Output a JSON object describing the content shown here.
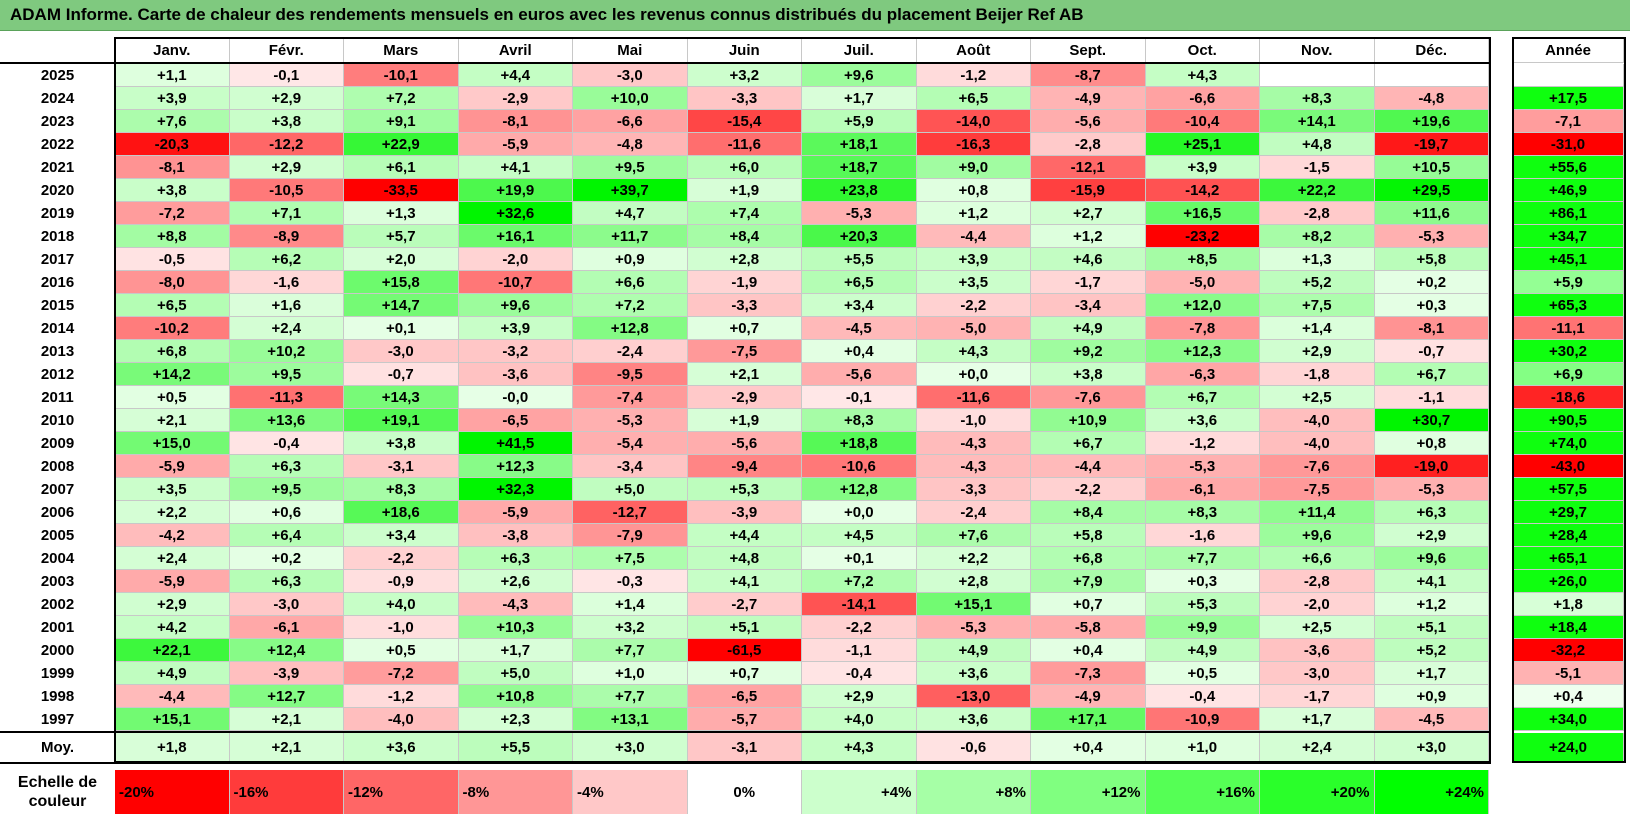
{
  "title": "ADAM Informe. Carte de chaleur des rendements mensuels en euros avec les revenus connus distribués du placement Beijer Ref AB",
  "chart_data": {
    "type": "heatmap",
    "title": "ADAM Informe. Carte de chaleur des rendements mensuels en euros avec les revenus connus distribués du placement Beijer Ref AB",
    "columns": [
      "Janv.",
      "Févr.",
      "Mars",
      "Avril",
      "Mai",
      "Juin",
      "Juil.",
      "Août",
      "Sept.",
      "Oct.",
      "Nov.",
      "Déc."
    ],
    "year_column_label": "Année",
    "average_row_label": "Moy.",
    "rows": [
      {
        "year": "2025",
        "months": [
          "+1,1",
          "-0,1",
          "-10,1",
          "+4,4",
          "-3,0",
          "+3,2",
          "+9,6",
          "-1,2",
          "-8,7",
          "+4,3",
          "",
          ""
        ],
        "annual": ""
      },
      {
        "year": "2024",
        "months": [
          "+3,9",
          "+2,9",
          "+7,2",
          "-2,9",
          "+10,0",
          "-3,3",
          "+1,7",
          "+6,5",
          "-4,9",
          "-6,6",
          "+8,3",
          "-4,8"
        ],
        "annual": "+17,5"
      },
      {
        "year": "2023",
        "months": [
          "+7,6",
          "+3,8",
          "+9,1",
          "-8,1",
          "-6,6",
          "-15,4",
          "+5,9",
          "-14,0",
          "-5,6",
          "-10,4",
          "+14,1",
          "+19,6"
        ],
        "annual": "-7,1"
      },
      {
        "year": "2022",
        "months": [
          "-20,3",
          "-12,2",
          "+22,9",
          "-5,9",
          "-4,8",
          "-11,6",
          "+18,1",
          "-16,3",
          "-2,8",
          "+25,1",
          "+4,8",
          "-19,7"
        ],
        "annual": "-31,0"
      },
      {
        "year": "2021",
        "months": [
          "-8,1",
          "+2,9",
          "+6,1",
          "+4,1",
          "+9,5",
          "+6,0",
          "+18,7",
          "+9,0",
          "-12,1",
          "+3,9",
          "-1,5",
          "+10,5"
        ],
        "annual": "+55,6"
      },
      {
        "year": "2020",
        "months": [
          "+3,8",
          "-10,5",
          "-33,5",
          "+19,9",
          "+39,7",
          "+1,9",
          "+23,8",
          "+0,8",
          "-15,9",
          "-14,2",
          "+22,2",
          "+29,5"
        ],
        "annual": "+46,9"
      },
      {
        "year": "2019",
        "months": [
          "-7,2",
          "+7,1",
          "+1,3",
          "+32,6",
          "+4,7",
          "+7,4",
          "-5,3",
          "+1,2",
          "+2,7",
          "+16,5",
          "-2,8",
          "+11,6"
        ],
        "annual": "+86,1"
      },
      {
        "year": "2018",
        "months": [
          "+8,8",
          "-8,9",
          "+5,7",
          "+16,1",
          "+11,7",
          "+8,4",
          "+20,3",
          "-4,4",
          "+1,2",
          "-23,2",
          "+8,2",
          "-5,3"
        ],
        "annual": "+34,7"
      },
      {
        "year": "2017",
        "months": [
          "-0,5",
          "+6,2",
          "+2,0",
          "-2,0",
          "+0,9",
          "+2,8",
          "+5,5",
          "+3,9",
          "+4,6",
          "+8,5",
          "+1,3",
          "+5,8"
        ],
        "annual": "+45,1"
      },
      {
        "year": "2016",
        "months": [
          "-8,0",
          "-1,6",
          "+15,8",
          "-10,7",
          "+6,6",
          "-1,9",
          "+6,5",
          "+3,5",
          "-1,7",
          "-5,0",
          "+5,2",
          "+0,2"
        ],
        "annual": "+5,9"
      },
      {
        "year": "2015",
        "months": [
          "+6,5",
          "+1,6",
          "+14,7",
          "+9,6",
          "+7,2",
          "-3,3",
          "+3,4",
          "-2,2",
          "-3,4",
          "+12,0",
          "+7,5",
          "+0,3"
        ],
        "annual": "+65,3"
      },
      {
        "year": "2014",
        "months": [
          "-10,2",
          "+2,4",
          "+0,1",
          "+3,9",
          "+12,8",
          "+0,7",
          "-4,5",
          "-5,0",
          "+4,9",
          "-7,8",
          "+1,4",
          "-8,1"
        ],
        "annual": "-11,1"
      },
      {
        "year": "2013",
        "months": [
          "+6,8",
          "+10,2",
          "-3,0",
          "-3,2",
          "-2,4",
          "-7,5",
          "+0,4",
          "+4,3",
          "+9,2",
          "+12,3",
          "+2,9",
          "-0,7"
        ],
        "annual": "+30,2"
      },
      {
        "year": "2012",
        "months": [
          "+14,2",
          "+9,5",
          "-0,7",
          "-3,6",
          "-9,5",
          "+2,1",
          "-5,6",
          "+0,0",
          "+3,8",
          "-6,3",
          "-1,8",
          "+6,7"
        ],
        "annual": "+6,9"
      },
      {
        "year": "2011",
        "months": [
          "+0,5",
          "-11,3",
          "+14,3",
          "-0,0",
          "-7,4",
          "-2,9",
          "-0,1",
          "-11,6",
          "-7,6",
          "+6,7",
          "+2,5",
          "-1,1"
        ],
        "annual": "-18,6"
      },
      {
        "year": "2010",
        "months": [
          "+2,1",
          "+13,6",
          "+19,1",
          "-6,5",
          "-5,3",
          "+1,9",
          "+8,3",
          "-1,0",
          "+10,9",
          "+3,6",
          "-4,0",
          "+30,7"
        ],
        "annual": "+90,5"
      },
      {
        "year": "2009",
        "months": [
          "+15,0",
          "-0,4",
          "+3,8",
          "+41,5",
          "-5,4",
          "-5,6",
          "+18,8",
          "-4,3",
          "+6,7",
          "-1,2",
          "-4,0",
          "+0,8"
        ],
        "annual": "+74,0"
      },
      {
        "year": "2008",
        "months": [
          "-5,9",
          "+6,3",
          "-3,1",
          "+12,3",
          "-3,4",
          "-9,4",
          "-10,6",
          "-4,3",
          "-4,4",
          "-5,3",
          "-7,6",
          "-19,0"
        ],
        "annual": "-43,0"
      },
      {
        "year": "2007",
        "months": [
          "+3,5",
          "+9,5",
          "+8,3",
          "+32,3",
          "+5,0",
          "+5,3",
          "+12,8",
          "-3,3",
          "-2,2",
          "-6,1",
          "-7,5",
          "-5,3"
        ],
        "annual": "+57,5"
      },
      {
        "year": "2006",
        "months": [
          "+2,2",
          "+0,6",
          "+18,6",
          "-5,9",
          "-12,7",
          "-3,9",
          "+0,0",
          "-2,4",
          "+8,4",
          "+8,3",
          "+11,4",
          "+6,3"
        ],
        "annual": "+29,7"
      },
      {
        "year": "2005",
        "months": [
          "-4,2",
          "+6,4",
          "+3,4",
          "-3,8",
          "-7,9",
          "+4,4",
          "+4,5",
          "+7,6",
          "+5,8",
          "-1,6",
          "+9,6",
          "+2,9"
        ],
        "annual": "+28,4"
      },
      {
        "year": "2004",
        "months": [
          "+2,4",
          "+0,2",
          "-2,2",
          "+6,3",
          "+7,5",
          "+4,8",
          "+0,1",
          "+2,2",
          "+6,8",
          "+7,7",
          "+6,6",
          "+9,6"
        ],
        "annual": "+65,1"
      },
      {
        "year": "2003",
        "months": [
          "-5,9",
          "+6,3",
          "-0,9",
          "+2,6",
          "-0,3",
          "+4,1",
          "+7,2",
          "+2,8",
          "+7,9",
          "+0,3",
          "-2,8",
          "+4,1"
        ],
        "annual": "+26,0"
      },
      {
        "year": "2002",
        "months": [
          "+2,9",
          "-3,0",
          "+4,0",
          "-4,3",
          "+1,4",
          "-2,7",
          "-14,1",
          "+15,1",
          "+0,7",
          "+5,3",
          "-2,0",
          "+1,2"
        ],
        "annual": "+1,8"
      },
      {
        "year": "2001",
        "months": [
          "+4,2",
          "-6,1",
          "-1,0",
          "+10,3",
          "+3,2",
          "+5,1",
          "-2,2",
          "-5,3",
          "-5,8",
          "+9,9",
          "+2,5",
          "+5,1"
        ],
        "annual": "+18,4"
      },
      {
        "year": "2000",
        "months": [
          "+22,1",
          "+12,4",
          "+0,5",
          "+1,7",
          "+7,7",
          "-61,5",
          "-1,1",
          "+4,9",
          "+0,4",
          "+4,9",
          "-3,6",
          "+5,2"
        ],
        "annual": "-32,2"
      },
      {
        "year": "1999",
        "months": [
          "+4,9",
          "-3,9",
          "-7,2",
          "+5,0",
          "+1,0",
          "+0,7",
          "-0,4",
          "+3,6",
          "-7,3",
          "+0,5",
          "-3,0",
          "+1,7"
        ],
        "annual": "-5,1"
      },
      {
        "year": "1998",
        "months": [
          "-4,4",
          "+12,7",
          "-1,2",
          "+10,8",
          "+7,7",
          "-6,5",
          "+2,9",
          "-13,0",
          "-4,9",
          "-0,4",
          "-1,7",
          "+0,9"
        ],
        "annual": "+0,4"
      },
      {
        "year": "1997",
        "months": [
          "+15,1",
          "+2,1",
          "-4,0",
          "+2,3",
          "+13,1",
          "-5,7",
          "+4,0",
          "+3,6",
          "+17,1",
          "-10,9",
          "+1,7",
          "-4,5"
        ],
        "annual": "+34,0"
      }
    ],
    "average": {
      "months": [
        "+1,8",
        "+2,1",
        "+3,6",
        "+5,5",
        "+3,0",
        "-3,1",
        "+4,3",
        "-0,6",
        "+0,4",
        "+1,0",
        "+2,4",
        "+3,0"
      ],
      "annual": "+24,0"
    },
    "color_scale": {
      "label": "Echelle de couleur",
      "steps": [
        "-20%",
        "-16%",
        "-12%",
        "-8%",
        "-4%",
        "0%",
        "+4%",
        "+8%",
        "+12%",
        "+16%",
        "+20%",
        "+24%"
      ],
      "negative_color": "#ff0000",
      "neutral_color": "#ffffff",
      "positive_color": "#00ff00"
    }
  }
}
